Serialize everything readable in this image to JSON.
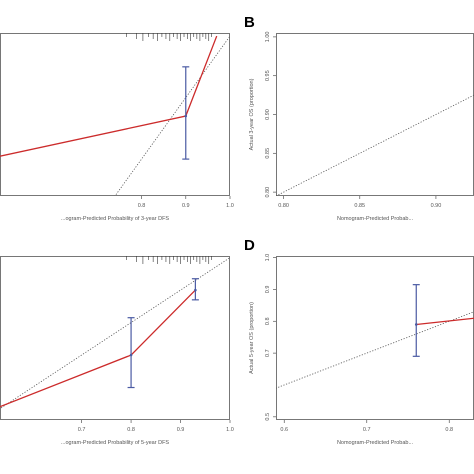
{
  "colors": {
    "background": "#ffffff",
    "frame": "#555555",
    "calibration": "#cc2b2b",
    "errorbar": "#4a5aa3",
    "ideal": "#555555"
  },
  "chart_data": [
    {
      "id": "top-left",
      "type": "line",
      "panel_label": "",
      "xlabel": "...ogram-Predicted Probability of 3-year DFS",
      "ylabel": "",
      "xlim": [
        0.48,
        1.0
      ],
      "ylim": [
        0.74,
        1.005
      ],
      "xticks": [
        0.8,
        0.9,
        1.0
      ],
      "xtick_labels": [
        "0.8",
        "0.9",
        "1.0"
      ],
      "yticks": [],
      "ytick_labels": [],
      "rug": true,
      "series": [
        {
          "role": "calibration",
          "x": [
            0.45,
            0.9,
            0.97
          ],
          "y": [
            0.8,
            0.87,
            1.0
          ],
          "ci_low": [
            null,
            0.8,
            null
          ],
          "ci_high": [
            null,
            0.95,
            null
          ]
        }
      ],
      "ideal_line": true
    },
    {
      "id": "B",
      "type": "line",
      "panel_label": "B",
      "xlabel": "Nomogram-Predicted Probab...",
      "ylabel": "Actual 3-year OS (proportion)",
      "xlim": [
        0.795,
        0.925
      ],
      "ylim": [
        0.795,
        1.005
      ],
      "xticks": [
        0.8,
        0.85,
        0.9
      ],
      "xtick_labels": [
        "0.80",
        "0.85",
        "0.90"
      ],
      "yticks": [
        0.8,
        0.85,
        0.9,
        0.95,
        1.0
      ],
      "ytick_labels": [
        "0.80",
        "0.85",
        "0.90",
        "0.95",
        "1.00"
      ],
      "rug": false,
      "series": [],
      "ideal_line": true
    },
    {
      "id": "bottom-left",
      "type": "line",
      "panel_label": "",
      "xlabel": "...ogram-Predicted Probability of 5-year DFS",
      "ylabel": "",
      "xlim": [
        0.535,
        1.0
      ],
      "ylim": [
        0.5,
        1.005
      ],
      "xticks": [
        0.7,
        0.8,
        0.9,
        1.0
      ],
      "xtick_labels": [
        "0.7",
        "0.8",
        "0.9",
        "1.0"
      ],
      "yticks": [],
      "ytick_labels": [],
      "rug": true,
      "series": [
        {
          "role": "calibration",
          "x": [
            0.5,
            0.8,
            0.93
          ],
          "y": [
            0.52,
            0.7,
            0.9
          ],
          "ci_low": [
            null,
            0.6,
            0.87
          ],
          "ci_high": [
            null,
            0.815,
            0.935
          ]
        }
      ],
      "ideal_line": true
    },
    {
      "id": "D",
      "type": "line",
      "panel_label": "D",
      "xlabel": "Nomogram-Predicted Probab...",
      "ylabel": "Actual 5-year OS (proportion)",
      "xlim": [
        0.59,
        0.83
      ],
      "ylim": [
        0.49,
        1.005
      ],
      "xticks": [
        0.6,
        0.7,
        0.8
      ],
      "xtick_labels": [
        "0.6",
        "0.7",
        "0.8"
      ],
      "yticks": [
        0.5,
        0.7,
        0.8,
        0.9,
        1.0
      ],
      "ytick_labels": [
        "0.5",
        "0.7",
        "0.8",
        "0.9",
        "1.0"
      ],
      "rug": false,
      "series": [
        {
          "role": "calibration",
          "x": [
            0.76,
            0.85
          ],
          "y": [
            0.79,
            0.815
          ],
          "ci_low": [
            0.69,
            null
          ],
          "ci_high": [
            0.915,
            null
          ]
        }
      ],
      "ideal_line": true
    }
  ]
}
